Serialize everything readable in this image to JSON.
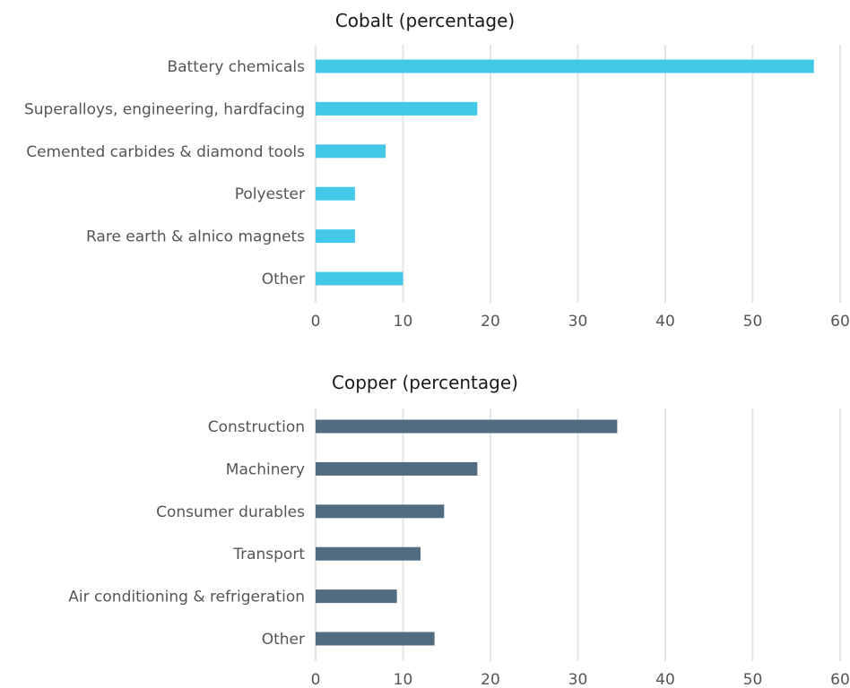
{
  "chart_data": [
    {
      "type": "bar",
      "orientation": "horizontal",
      "title": "Cobalt (percentage)",
      "categories": [
        "Battery chemicals",
        "Superalloys, engineering, hardfacing",
        "Cemented carbides & diamond tools",
        "Polyester",
        "Rare earth & alnico magnets",
        "Other"
      ],
      "values": [
        57,
        18.5,
        8,
        4.5,
        4.5,
        10
      ],
      "xlim": [
        0,
        60
      ],
      "xticks": [
        "0",
        "10",
        "20",
        "30",
        "40",
        "50",
        "60"
      ],
      "grid": true,
      "color": "#44c8e8"
    },
    {
      "type": "bar",
      "orientation": "horizontal",
      "title": "Copper (percentage)",
      "categories": [
        "Construction",
        "Machinery",
        "Consumer durables",
        "Transport",
        "Air conditioning & refrigeration",
        "Other"
      ],
      "values": [
        34.5,
        18.5,
        14.7,
        12,
        9.3,
        13.6
      ],
      "xlim": [
        0,
        60
      ],
      "xticks": [
        "0",
        "10",
        "20",
        "30",
        "40",
        "50",
        "60"
      ],
      "grid": true,
      "color": "#516b80"
    }
  ]
}
